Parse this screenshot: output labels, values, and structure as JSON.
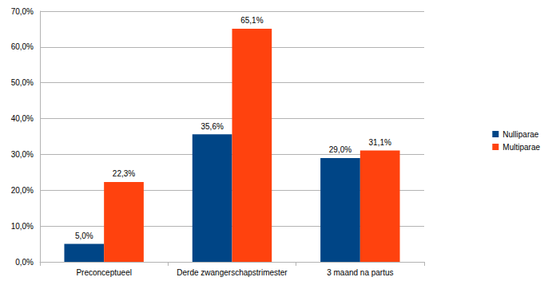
{
  "chart_data": {
    "type": "bar",
    "categories": [
      "Preconceptueel",
      "Derde zwangerschapstrimester",
      "3 maand na partus"
    ],
    "series": [
      {
        "name": "Nulliparae",
        "color": "#004586",
        "values": [
          5.0,
          35.6,
          29.0
        ],
        "value_labels": [
          "5,0%",
          "35,6%",
          "29,0%"
        ]
      },
      {
        "name": "Multiparae",
        "color": "#ff420e",
        "values": [
          22.3,
          65.1,
          31.1
        ],
        "value_labels": [
          "22,3%",
          "65,1%",
          "31,1%"
        ]
      }
    ],
    "ylim": [
      0,
      70
    ],
    "yticks": [
      {
        "value": 0,
        "label": "0,0%"
      },
      {
        "value": 10,
        "label": "10,0%"
      },
      {
        "value": 20,
        "label": "20,0%"
      },
      {
        "value": 30,
        "label": "30,0%"
      },
      {
        "value": 40,
        "label": "40,0%"
      },
      {
        "value": 50,
        "label": "50,0%"
      },
      {
        "value": 60,
        "label": "60,0%"
      },
      {
        "value": 70,
        "label": "70,0%"
      }
    ],
    "grid": true,
    "legend": "right",
    "data_labels": true
  }
}
